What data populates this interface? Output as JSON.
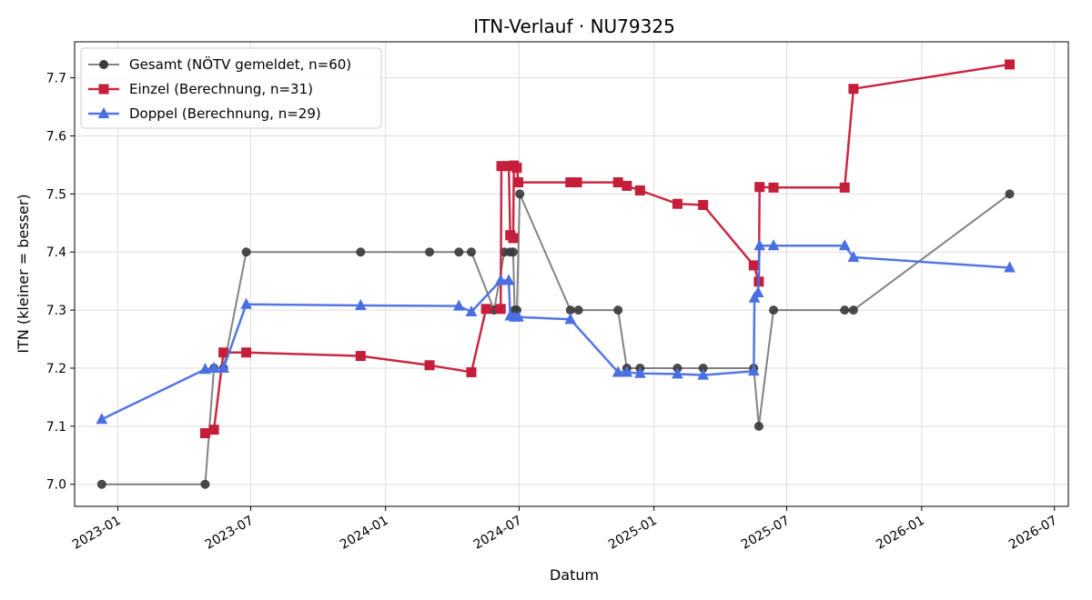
{
  "chart_data": {
    "type": "line",
    "title": "ITN-Verlauf · NU79325",
    "xlabel": "Datum",
    "ylabel": "ITN  (kleiner = besser)",
    "x_type": "date",
    "xlim": [
      "2022-11-03",
      "2026-07-20"
    ],
    "ylim": [
      6.962,
      7.762
    ],
    "x_ticks": [
      "2023-01-01",
      "2023-07-01",
      "2024-01-01",
      "2024-07-01",
      "2025-01-01",
      "2025-07-01",
      "2026-01-01",
      "2026-07-01"
    ],
    "x_tick_labels": [
      "2023-01",
      "2023-07",
      "2024-01",
      "2024-07",
      "2025-01",
      "2025-07",
      "2026-01",
      "2026-07"
    ],
    "y_ticks": [
      7.0,
      7.1,
      7.2,
      7.3,
      7.4,
      7.5,
      7.6,
      7.7
    ],
    "y_tick_labels": [
      "7.0",
      "7.1",
      "7.2",
      "7.3",
      "7.4",
      "7.5",
      "7.6",
      "7.7"
    ],
    "grid": true,
    "legend_position": "top-left",
    "series": [
      {
        "name": "Gesamt (NÖTV gemeldet, n=60)",
        "color": "#595959",
        "marker": "circle",
        "points": [
          [
            "2022-12-10",
            7.0
          ],
          [
            "2023-04-30",
            7.0
          ],
          [
            "2023-05-12",
            7.2
          ],
          [
            "2023-05-25",
            7.2
          ],
          [
            "2023-06-25",
            7.4
          ],
          [
            "2023-11-28",
            7.4
          ],
          [
            "2024-03-01",
            7.4
          ],
          [
            "2024-04-10",
            7.4
          ],
          [
            "2024-04-27",
            7.4
          ],
          [
            "2024-05-28",
            7.3
          ],
          [
            "2024-06-11",
            7.4
          ],
          [
            "2024-06-19",
            7.4
          ],
          [
            "2024-06-23",
            7.4
          ],
          [
            "2024-06-25",
            7.3
          ],
          [
            "2024-06-28",
            7.3
          ],
          [
            "2024-07-02",
            7.5
          ],
          [
            "2024-09-09",
            7.3
          ],
          [
            "2024-09-20",
            7.3
          ],
          [
            "2024-11-13",
            7.3
          ],
          [
            "2024-11-25",
            7.2
          ],
          [
            "2024-12-13",
            7.2
          ],
          [
            "2025-02-02",
            7.2
          ],
          [
            "2025-03-09",
            7.2
          ],
          [
            "2025-05-17",
            7.2
          ],
          [
            "2025-05-24",
            7.1
          ],
          [
            "2025-06-13",
            7.3
          ],
          [
            "2025-09-18",
            7.3
          ],
          [
            "2025-09-30",
            7.3
          ],
          [
            "2026-05-01",
            7.5
          ]
        ]
      },
      {
        "name": "Einzel (Berechnung, n=31)",
        "color": "#c41e3a",
        "marker": "square",
        "points": [
          [
            "2023-04-30",
            7.088
          ],
          [
            "2023-05-12",
            7.094
          ],
          [
            "2023-05-25",
            7.227
          ],
          [
            "2023-06-25",
            7.227
          ],
          [
            "2023-11-28",
            7.221
          ],
          [
            "2024-03-01",
            7.205
          ],
          [
            "2024-04-27",
            7.193
          ],
          [
            "2024-05-17",
            7.302
          ],
          [
            "2024-06-06",
            7.302
          ],
          [
            "2024-06-07",
            7.548
          ],
          [
            "2024-06-17",
            7.548
          ],
          [
            "2024-06-19",
            7.429
          ],
          [
            "2024-06-23",
            7.424
          ],
          [
            "2024-06-24",
            7.549
          ],
          [
            "2024-06-28",
            7.545
          ],
          [
            "2024-06-30",
            7.52
          ],
          [
            "2024-09-09",
            7.52
          ],
          [
            "2024-09-18",
            7.52
          ],
          [
            "2024-11-13",
            7.52
          ],
          [
            "2024-11-25",
            7.514
          ],
          [
            "2024-12-13",
            7.506
          ],
          [
            "2025-02-02",
            7.483
          ],
          [
            "2025-03-09",
            7.481
          ],
          [
            "2025-05-17",
            7.377
          ],
          [
            "2025-05-24",
            7.349
          ],
          [
            "2025-05-25",
            7.512
          ],
          [
            "2025-06-13",
            7.511
          ],
          [
            "2025-09-18",
            7.511
          ],
          [
            "2025-09-30",
            7.681
          ],
          [
            "2026-05-01",
            7.723
          ]
        ]
      },
      {
        "name": "Doppel (Berechnung, n=29)",
        "color": "#4a6fe3",
        "marker": "triangle",
        "points": [
          [
            "2022-12-10",
            7.112
          ],
          [
            "2023-04-30",
            7.198
          ],
          [
            "2023-05-12",
            7.2
          ],
          [
            "2023-05-25",
            7.2
          ],
          [
            "2023-06-25",
            7.31
          ],
          [
            "2023-11-28",
            7.308
          ],
          [
            "2024-04-10",
            7.307
          ],
          [
            "2024-04-27",
            7.297
          ],
          [
            "2024-06-06",
            7.351
          ],
          [
            "2024-06-17",
            7.351
          ],
          [
            "2024-06-19",
            7.29
          ],
          [
            "2024-06-25",
            7.288
          ],
          [
            "2024-06-30",
            7.288
          ],
          [
            "2024-09-09",
            7.284
          ],
          [
            "2024-11-13",
            7.193
          ],
          [
            "2024-11-25",
            7.193
          ],
          [
            "2024-12-13",
            7.191
          ],
          [
            "2025-02-02",
            7.19
          ],
          [
            "2025-03-09",
            7.188
          ],
          [
            "2025-05-17",
            7.195
          ],
          [
            "2025-05-18",
            7.321
          ],
          [
            "2025-05-23",
            7.33
          ],
          [
            "2025-05-25",
            7.411
          ],
          [
            "2025-06-13",
            7.411
          ],
          [
            "2025-09-18",
            7.411
          ],
          [
            "2025-09-30",
            7.391
          ],
          [
            "2026-05-01",
            7.373
          ]
        ]
      }
    ]
  }
}
